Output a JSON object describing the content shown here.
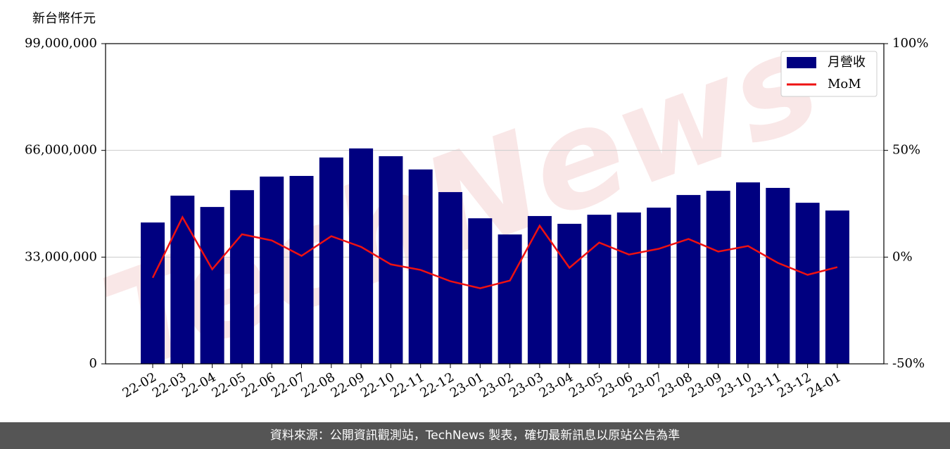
{
  "chart_data": {
    "type": "bar",
    "y_label": "新台幣仟元",
    "watermark": "TechNews",
    "categories": [
      "22-02",
      "22-03",
      "22-04",
      "22-05",
      "22-06",
      "22-07",
      "22-08",
      "22-09",
      "22-10",
      "22-11",
      "22-12",
      "23-01",
      "23-02",
      "23-03",
      "23-04",
      "23-05",
      "23-06",
      "23-07",
      "23-08",
      "23-09",
      "23-10",
      "23-11",
      "23-12",
      "24-01"
    ],
    "series": [
      {
        "name": "月營收",
        "type": "bar",
        "color": "#000080",
        "values": [
          43700000,
          52000000,
          48500000,
          53700000,
          57900000,
          58100000,
          63800000,
          66600000,
          64200000,
          60100000,
          53100000,
          45000000,
          40000000,
          45700000,
          43300000,
          46100000,
          46800000,
          48300000,
          52200000,
          53500000,
          56100000,
          54400000,
          49800000,
          47400000
        ]
      },
      {
        "name": "MoM",
        "type": "line",
        "axis": "y2",
        "color": "#ee1111",
        "values": [
          -9.7,
          18.7,
          -5.7,
          10.7,
          7.8,
          0.6,
          9.8,
          4.8,
          -3.4,
          -6.0,
          -11.3,
          -14.6,
          -11.0,
          14.7,
          -5.0,
          6.8,
          1.2,
          3.9,
          8.5,
          2.6,
          5.2,
          -2.7,
          -8.3,
          -4.7
        ]
      }
    ],
    "ylim": [
      0,
      99000000
    ],
    "yticks": [
      0,
      {
        "value": 33000000,
        "label": "33,000,000"
      },
      {
        "value": 66000000,
        "label": "66,000,000"
      },
      {
        "value": 99000000,
        "label": "99,000,000"
      }
    ],
    "y2lim": [
      -50,
      100
    ],
    "y2ticks": [
      {
        "value": -50,
        "label": "-50%"
      },
      {
        "value": 0,
        "label": "0%"
      },
      {
        "value": 50,
        "label": "50%"
      },
      {
        "value": 100,
        "label": "100%"
      }
    ],
    "grid": true,
    "legend": "upper right"
  },
  "footer": "資料來源：公開資訊觀測站，TechNews 製表，確切最新訊息以原站公告為準"
}
